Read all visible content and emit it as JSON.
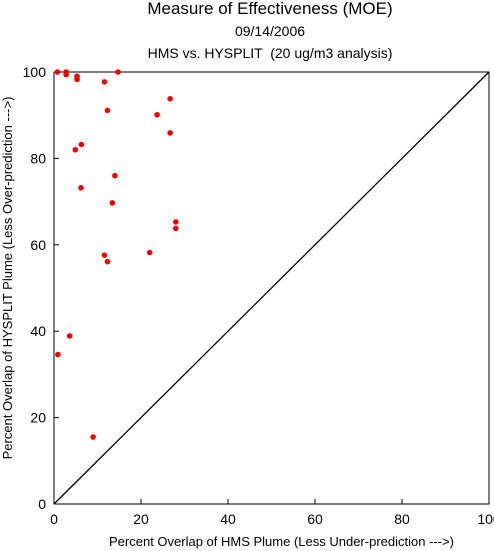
{
  "chart_data": {
    "type": "scatter",
    "title": "Measure of Effectiveness (MOE)",
    "date": "09/14/2006",
    "subtitle": "HMS vs. HYSPLIT  (20 ug/m3 analysis)",
    "xlabel": "Percent Overlap of HMS Plume (Less Under-prediction --->)",
    "ylabel": "Percent Overlap of HYSPLIT Plume (Less Over-prediction --->)",
    "xlim": [
      0,
      100
    ],
    "ylim": [
      0,
      100
    ],
    "xticks": [
      "0",
      "20",
      "40",
      "60",
      "80",
      "100"
    ],
    "yticks": [
      "0",
      "20",
      "40",
      "60",
      "80",
      "100"
    ],
    "grid": false,
    "reference_line": "1:1 diagonal",
    "point_color": "#ee0000",
    "line_color": "#000000",
    "points": [
      {
        "x": 0.8,
        "y": 100.0
      },
      {
        "x": 2.8,
        "y": 100.0
      },
      {
        "x": 2.8,
        "y": 99.4
      },
      {
        "x": 5.3,
        "y": 99.0
      },
      {
        "x": 5.3,
        "y": 98.3
      },
      {
        "x": 11.6,
        "y": 97.7
      },
      {
        "x": 14.7,
        "y": 100.0
      },
      {
        "x": 26.7,
        "y": 93.8
      },
      {
        "x": 12.3,
        "y": 91.1
      },
      {
        "x": 23.7,
        "y": 90.1
      },
      {
        "x": 26.7,
        "y": 85.9
      },
      {
        "x": 6.3,
        "y": 83.2
      },
      {
        "x": 4.9,
        "y": 82.0
      },
      {
        "x": 14.0,
        "y": 76.0
      },
      {
        "x": 6.2,
        "y": 73.2
      },
      {
        "x": 13.4,
        "y": 69.7
      },
      {
        "x": 28.0,
        "y": 65.3
      },
      {
        "x": 28.0,
        "y": 63.8
      },
      {
        "x": 22.0,
        "y": 58.2
      },
      {
        "x": 11.6,
        "y": 57.6
      },
      {
        "x": 12.3,
        "y": 56.1
      },
      {
        "x": 3.6,
        "y": 38.9
      },
      {
        "x": 0.9,
        "y": 34.6
      },
      {
        "x": 9.0,
        "y": 15.5
      }
    ]
  }
}
